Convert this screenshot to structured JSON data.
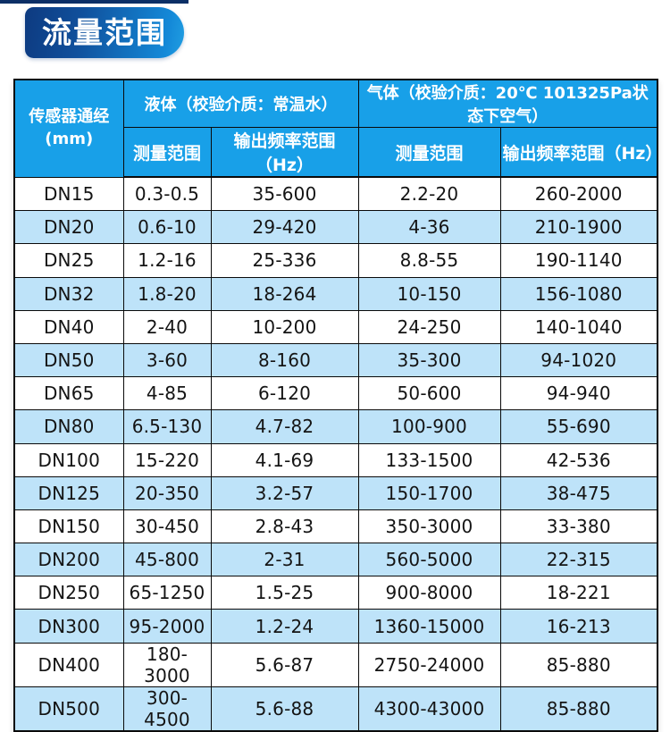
{
  "badge": {
    "label": "流量范围"
  },
  "table": {
    "col1_header": {
      "line1": "传感器通经",
      "line2": "(mm)"
    },
    "groups": {
      "liquid": "液体（校验介质：常温水）",
      "gas": "气体（校验介质：20℃ 101325Pa状态下空气）"
    },
    "sub_headers": [
      "测量范围",
      "输出频率范围（Hz）",
      "测量范围",
      "输出频率范围（Hz）"
    ],
    "rows": [
      [
        "DN15",
        "0.3-0.5",
        "35-600",
        "2.2-20",
        "260-2000"
      ],
      [
        "DN20",
        "0.6-10",
        "29-420",
        "4-36",
        "210-1900"
      ],
      [
        "DN25",
        "1.2-16",
        "25-336",
        "8.8-55",
        "190-1140"
      ],
      [
        "DN32",
        "1.8-20",
        "18-264",
        "10-150",
        "156-1080"
      ],
      [
        "DN40",
        "2-40",
        "10-200",
        "24-250",
        "140-1040"
      ],
      [
        "DN50",
        "3-60",
        "8-160",
        "35-300",
        "94-1020"
      ],
      [
        "DN65",
        "4-85",
        "6-120",
        "50-600",
        "94-940"
      ],
      [
        "DN80",
        "6.5-130",
        "4.7-82",
        "100-900",
        "55-690"
      ],
      [
        "DN100",
        "15-220",
        "4.1-69",
        "133-1500",
        "42-536"
      ],
      [
        "DN125",
        "20-350",
        "3.2-57",
        "150-1700",
        "38-475"
      ],
      [
        "DN150",
        "30-450",
        "2.8-43",
        "350-3000",
        "33-380"
      ],
      [
        "DN200",
        "45-800",
        "2-31",
        "560-5000",
        "22-315"
      ],
      [
        "DN250",
        "65-1250",
        "1.5-25",
        "900-8000",
        "18-221"
      ],
      [
        "DN300",
        "95-2000",
        "1.2-24",
        "1360-15000",
        "16-213"
      ],
      [
        "DN400",
        "180-3000",
        "5.6-87",
        "2750-24000",
        "85-880"
      ],
      [
        "DN500",
        "300-4500",
        "5.6-88",
        "4300-43000",
        "85-880"
      ]
    ]
  },
  "colors": {
    "header_blue": "#18a0e8",
    "stripe_blue": "#bee3f9",
    "badge_gradient_start": "#0d3a80",
    "badge_gradient_end": "#219fe2",
    "top_line_navy": "#0c2f66",
    "border_dark": "#0a0a0a"
  }
}
